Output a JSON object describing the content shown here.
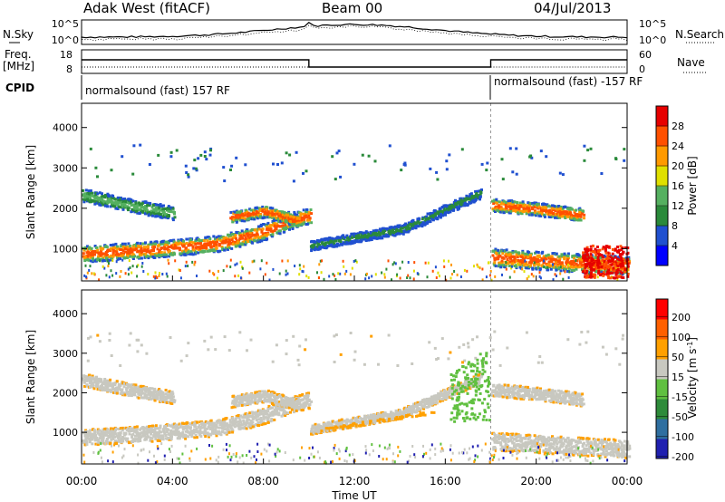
{
  "header": {
    "station": "Adak West (fitACF)",
    "beam": "Beam 00",
    "date": "04/Jul/2013"
  },
  "noise_panel": {
    "left_label": "N.Sky",
    "right_label": "N.Search",
    "left_ticks": [
      "10^5",
      "10^0"
    ],
    "right_ticks": [
      "10^5",
      "10^0"
    ]
  },
  "freq_panel": {
    "left_label_line1": "Freq.",
    "left_label_line2": "[MHz]",
    "right_label": "Nave",
    "left_ticks": [
      "18",
      "8"
    ],
    "right_ticks": [
      "60",
      "0"
    ]
  },
  "cpid_panel": {
    "label": "CPID",
    "segments": [
      {
        "label": "normalsound (fast) 157 RF",
        "start_hour": 0
      },
      {
        "label": "normalsound (fast) -157 RF",
        "start_hour": 18
      }
    ]
  },
  "chart_data": [
    {
      "type": "heatmap",
      "title": "",
      "ylabel": "Slant Range [km]",
      "xlabel": "",
      "yticks": [
        "1000",
        "2000",
        "3000",
        "4000"
      ],
      "ylim": [
        200,
        4600
      ],
      "xlim": [
        0,
        24
      ],
      "colorbar": {
        "label": "Power [dB]",
        "ticks": [
          "28",
          "24",
          "20",
          "16",
          "12",
          "8",
          "4"
        ],
        "colors": [
          "#0000ff",
          "#2050d0",
          "#2a8a3a",
          "#55b060",
          "#e0e000",
          "#ff9a00",
          "#ff5000",
          "#e60000"
        ]
      },
      "bands": [
        {
          "t": [
            0,
            3,
            6,
            8,
            9,
            10
          ],
          "r_center": [
            900,
            1000,
            1150,
            1450,
            1700,
            1850
          ],
          "width": 250,
          "level": "high"
        },
        {
          "t": [
            6.5,
            8,
            9.5
          ],
          "r_center": [
            1800,
            1950,
            1700
          ],
          "width": 180,
          "level": "high"
        },
        {
          "t": [
            10,
            14,
            17.5
          ],
          "r_center": [
            1100,
            1500,
            2400
          ],
          "width": 150,
          "level": "low"
        },
        {
          "t": [
            0,
            2,
            4
          ],
          "r_center": [
            2350,
            2100,
            1900
          ],
          "width": 200,
          "level": "mid"
        },
        {
          "t": [
            18,
            20,
            22
          ],
          "r_center": [
            2100,
            2000,
            1850
          ],
          "width": 200,
          "level": "high"
        },
        {
          "t": [
            18,
            21,
            24
          ],
          "r_center": [
            800,
            700,
            600
          ],
          "width": 280,
          "level": "high"
        }
      ]
    },
    {
      "type": "heatmap",
      "title": "",
      "ylabel": "Slant Range [km]",
      "xlabel": "Time UT",
      "yticks": [
        "1000",
        "2000",
        "3000",
        "4000"
      ],
      "xticks": [
        "00:00",
        "04:00",
        "08:00",
        "12:00",
        "16:00",
        "20:00",
        "00:00"
      ],
      "ylim": [
        200,
        4600
      ],
      "xlim": [
        0,
        24
      ],
      "colorbar": {
        "label": "Velocity [m s^-1]",
        "ticks": [
          "200",
          "100",
          "50",
          "15",
          "-15",
          "-50",
          "-100",
          "-200"
        ],
        "colors": [
          "#2020b0",
          "#2f6fa0",
          "#2e8b3a",
          "#60c040",
          "#c8c8c0",
          "#ffa000",
          "#ff6000",
          "#ff0000"
        ]
      }
    }
  ]
}
